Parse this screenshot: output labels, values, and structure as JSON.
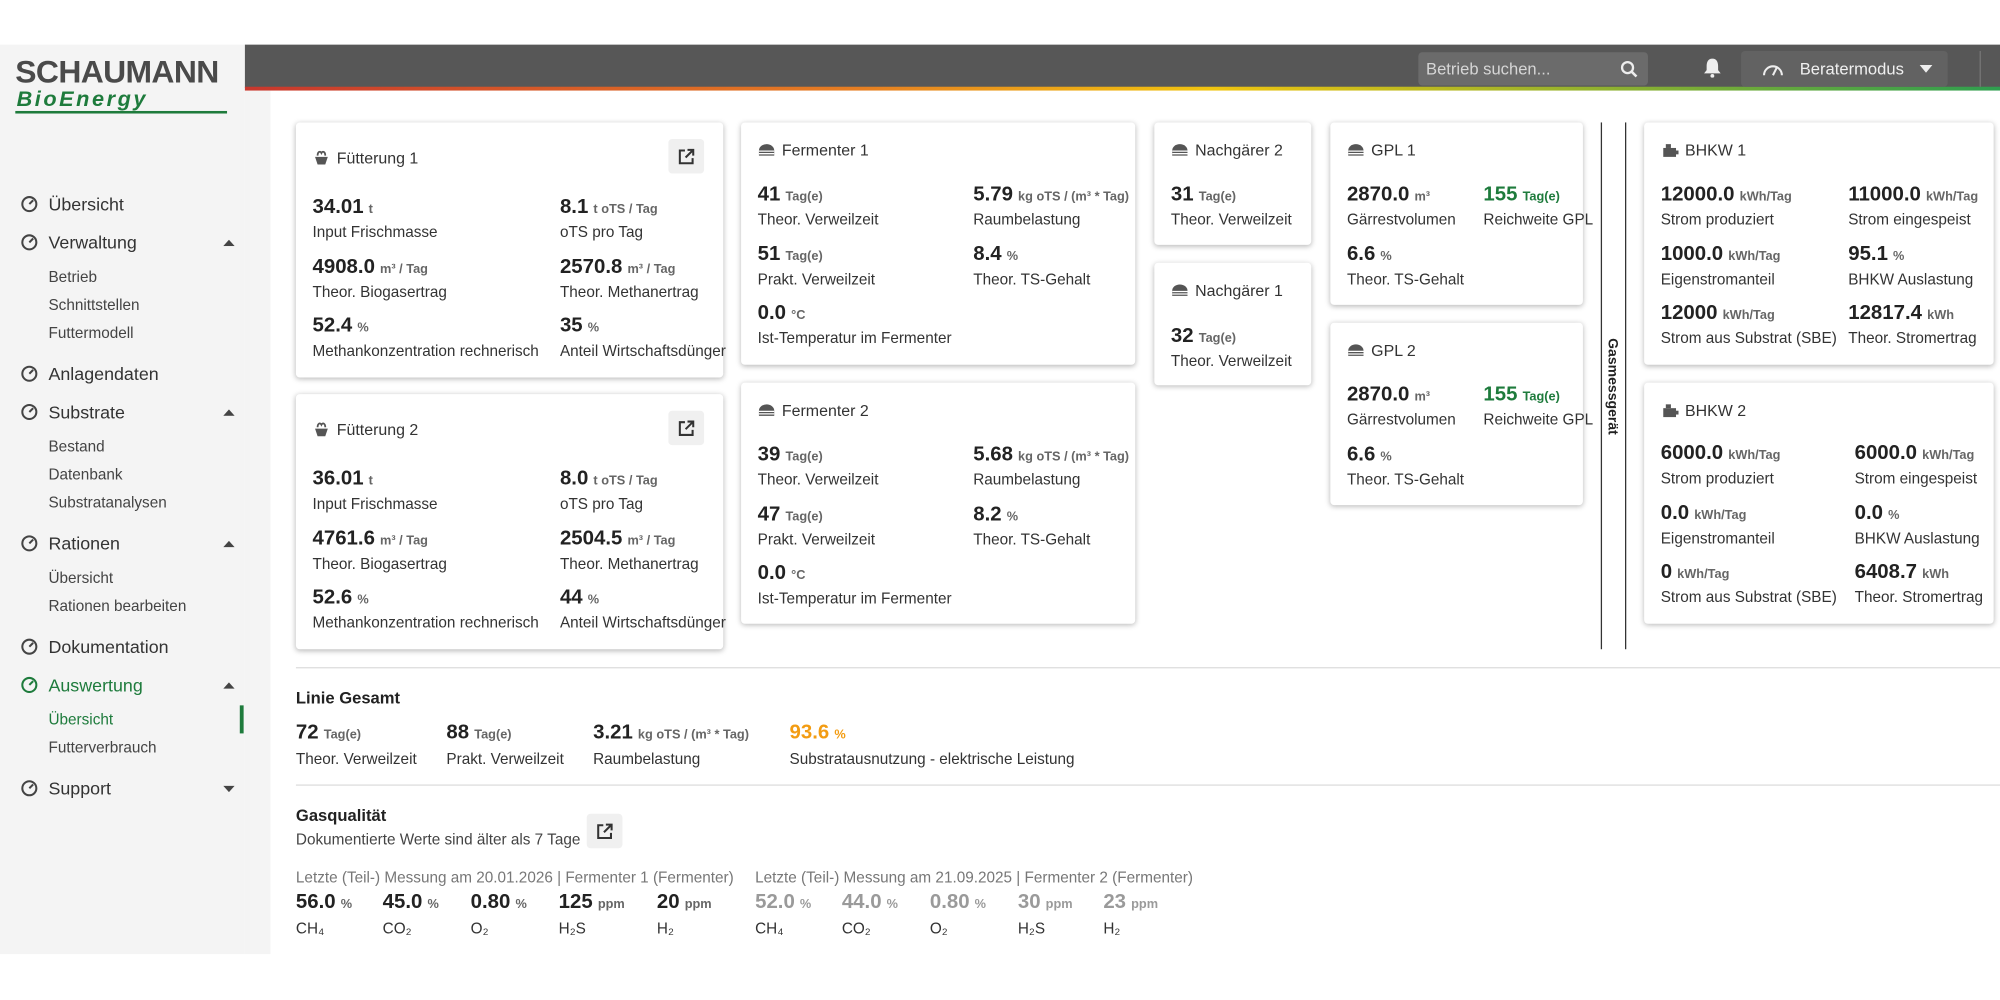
{
  "logo": {
    "brand": "SCHAUMANN",
    "sub": "BioEnergy"
  },
  "header": {
    "search_placeholder": "Betrieb suchen...",
    "mode": "Beratermodus"
  },
  "sidebar": {
    "items": [
      {
        "label": "Übersicht"
      },
      {
        "label": "Verwaltung",
        "children": [
          "Betrieb",
          "Schnittstellen",
          "Futtermodell"
        ]
      },
      {
        "label": "Anlagendaten"
      },
      {
        "label": "Substrate",
        "children": [
          "Bestand",
          "Datenbank",
          "Substratanalysen"
        ]
      },
      {
        "label": "Rationen",
        "children": [
          "Übersicht",
          "Rationen bearbeiten"
        ]
      },
      {
        "label": "Dokumentation"
      },
      {
        "label": "Auswertung",
        "children": [
          "Übersicht",
          "Futterverbrauch"
        ],
        "active_child": 0
      },
      {
        "label": "Support",
        "collapsed": true
      }
    ]
  },
  "cards": [
    {
      "title": "Fütterung 1",
      "metrics": [
        {
          "value": "34.01",
          "unit": "t",
          "label": "Input Frischmasse"
        },
        {
          "value": "8.1",
          "unit": "t oTS / Tag",
          "label": "oTS pro Tag"
        },
        {
          "value": "4908.0",
          "unit": "m³ / Tag",
          "label": "Theor. Biogasertrag"
        },
        {
          "value": "2570.8",
          "unit": "m³ / Tag",
          "label": "Theor. Methanertrag"
        },
        {
          "value": "52.4",
          "unit": "%",
          "label": "Methankonzentration rechnerisch"
        },
        {
          "value": "35",
          "unit": "%",
          "label": "Anteil Wirtschaftsdünger"
        }
      ]
    },
    {
      "title": "Fütterung 2",
      "metrics": [
        {
          "value": "36.01",
          "unit": "t",
          "label": "Input Frischmasse"
        },
        {
          "value": "8.0",
          "unit": "t oTS / Tag",
          "label": "oTS pro Tag"
        },
        {
          "value": "4761.6",
          "unit": "m³ / Tag",
          "label": "Theor. Biogasertrag"
        },
        {
          "value": "2504.5",
          "unit": "m³ / Tag",
          "label": "Theor. Methanertrag"
        },
        {
          "value": "52.6",
          "unit": "%",
          "label": "Methankonzentration rechnerisch"
        },
        {
          "value": "44",
          "unit": "%",
          "label": "Anteil Wirtschaftsdünger"
        }
      ]
    },
    {
      "title": "Fermenter 1",
      "metrics": [
        {
          "value": "41",
          "unit": "Tag(e)",
          "label": "Theor. Verweilzeit"
        },
        {
          "value": "5.79",
          "unit": "kg oTS / (m³ * Tag)",
          "label": "Raumbelastung"
        },
        {
          "value": "51",
          "unit": "Tag(e)",
          "label": "Prakt. Verweilzeit"
        },
        {
          "value": "8.4",
          "unit": "%",
          "label": "Theor. TS-Gehalt"
        },
        {
          "value": "0.0",
          "unit": "°C",
          "label": "Ist-Temperatur im Fermenter"
        }
      ]
    },
    {
      "title": "Fermenter 2",
      "metrics": [
        {
          "value": "39",
          "unit": "Tag(e)",
          "label": "Theor. Verweilzeit"
        },
        {
          "value": "5.68",
          "unit": "kg oTS / (m³ * Tag)",
          "label": "Raumbelastung"
        },
        {
          "value": "47",
          "unit": "Tag(e)",
          "label": "Prakt. Verweilzeit"
        },
        {
          "value": "8.2",
          "unit": "%",
          "label": "Theor. TS-Gehalt"
        },
        {
          "value": "0.0",
          "unit": "°C",
          "label": "Ist-Temperatur im Fermenter"
        }
      ]
    },
    {
      "title": "Nachgärer 2",
      "metrics": [
        {
          "value": "31",
          "unit": "Tag(e)",
          "label": "Theor. Verweilzeit"
        }
      ]
    },
    {
      "title": "Nachgärer 1",
      "metrics": [
        {
          "value": "32",
          "unit": "Tag(e)",
          "label": "Theor. Verweilzeit"
        }
      ]
    },
    {
      "title": "GPL 1",
      "metrics": [
        {
          "value": "2870.0",
          "unit": "m³",
          "label": "Gärrestvolumen"
        },
        {
          "value": "155",
          "unit": "Tag(e)",
          "label": "Reichweite GPL",
          "color": "#1e7b3c"
        },
        {
          "value": "6.6",
          "unit": "%",
          "label": "Theor. TS-Gehalt"
        }
      ]
    },
    {
      "title": "GPL 2",
      "metrics": [
        {
          "value": "2870.0",
          "unit": "m³",
          "label": "Gärrestvolumen"
        },
        {
          "value": "155",
          "unit": "Tag(e)",
          "label": "Reichweite GPL",
          "color": "#1e7b3c"
        },
        {
          "value": "6.6",
          "unit": "%",
          "label": "Theor. TS-Gehalt"
        }
      ]
    },
    {
      "title": "BHKW 1",
      "metrics": [
        {
          "value": "12000.0",
          "unit": "kWh/Tag",
          "label": "Strom produziert"
        },
        {
          "value": "11000.0",
          "unit": "kWh/Tag",
          "label": "Strom eingespeist"
        },
        {
          "value": "1000.0",
          "unit": "kWh/Tag",
          "label": "Eigenstromanteil"
        },
        {
          "value": "95.1",
          "unit": "%",
          "label": "BHKW Auslastung"
        },
        {
          "value": "12000",
          "unit": "kWh/Tag",
          "label": "Strom aus Substrat (SBE)"
        },
        {
          "value": "12817.4",
          "unit": "kWh",
          "label": "Theor. Stromertrag"
        }
      ]
    },
    {
      "title": "BHKW 2",
      "metrics": [
        {
          "value": "6000.0",
          "unit": "kWh/Tag",
          "label": "Strom produziert"
        },
        {
          "value": "6000.0",
          "unit": "kWh/Tag",
          "label": "Strom eingespeist"
        },
        {
          "value": "0.0",
          "unit": "kWh/Tag",
          "label": "Eigenstromanteil"
        },
        {
          "value": "0.0",
          "unit": "%",
          "label": "BHKW Auslastung"
        },
        {
          "value": "0",
          "unit": "kWh/Tag",
          "label": "Strom aus Substrat (SBE)"
        },
        {
          "value": "6408.7",
          "unit": "kWh",
          "label": "Theor. Stromertrag"
        }
      ]
    }
  ],
  "gas_device_label": "Gasmessgerät",
  "linie_gesamt": {
    "title": "Linie Gesamt",
    "metrics": [
      {
        "value": "72",
        "unit": "Tag(e)",
        "label": "Theor. Verweilzeit"
      },
      {
        "value": "88",
        "unit": "Tag(e)",
        "label": "Prakt. Verweilzeit"
      },
      {
        "value": "3.21",
        "unit": "kg oTS / (m³ * Tag)",
        "label": "Raumbelastung"
      },
      {
        "value": "93.6",
        "unit": "%",
        "label": "Substratausnutzung - elektrische Leistung",
        "color": "#f39c12"
      }
    ]
  },
  "gasqualitaet": {
    "title": "Gasqualität",
    "note": "Dokumentierte Werte sind älter als 7 Tage",
    "measurements": [
      {
        "caption": "Letzte (Teil-) Messung am 20.01.2026 | Fermenter 1 (Fermenter)",
        "values": [
          {
            "value": "56.0",
            "unit": "%",
            "label": "CH₄"
          },
          {
            "value": "45.0",
            "unit": "%",
            "label": "CO₂"
          },
          {
            "value": "0.80",
            "unit": "%",
            "label": "O₂"
          },
          {
            "value": "125",
            "unit": "ppm",
            "label": "H₂S"
          },
          {
            "value": "20",
            "unit": "ppm",
            "label": "H₂"
          }
        ]
      },
      {
        "caption": "Letzte (Teil-) Messung am 21.09.2025 | Fermenter 2 (Fermenter)",
        "color": "#9a9a9a",
        "values": [
          {
            "value": "52.0",
            "unit": "%",
            "label": "CH₄"
          },
          {
            "value": "44.0",
            "unit": "%",
            "label": "CO₂"
          },
          {
            "value": "0.80",
            "unit": "%",
            "label": "O₂"
          },
          {
            "value": "30",
            "unit": "ppm",
            "label": "H₂S"
          },
          {
            "value": "23",
            "unit": "ppm",
            "label": "H₂"
          }
        ]
      }
    ]
  }
}
